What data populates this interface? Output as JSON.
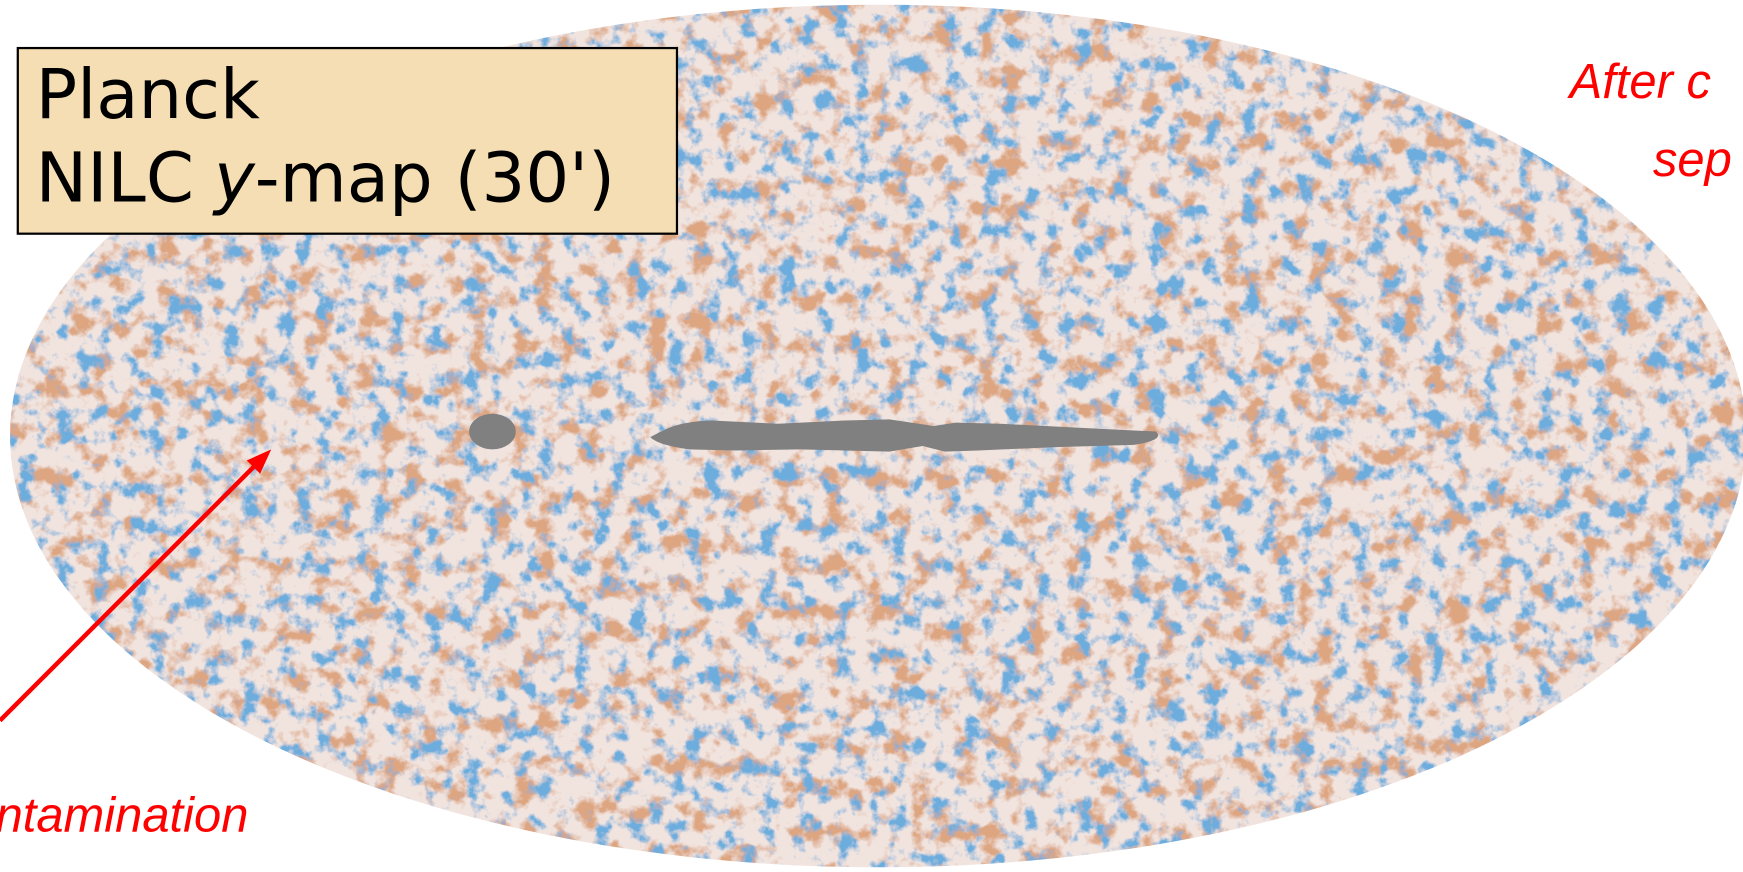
{
  "title_box": {
    "line1": "Planck",
    "line2": {
      "name": "NILC",
      "variable": "y",
      "rest": "-map (30')"
    }
  },
  "annotations": {
    "top_right_1": "After c",
    "top_right_2": "sep",
    "bottom_left": "ntamination"
  }
}
